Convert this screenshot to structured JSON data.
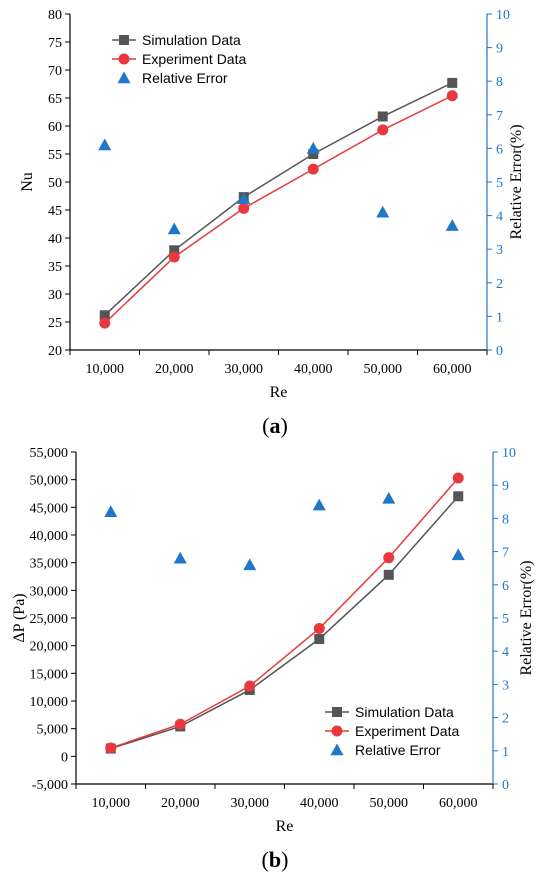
{
  "chart_data": [
    {
      "type": "line",
      "panel_label": "(a)",
      "panel_letter": "a",
      "xlabel": "Re",
      "ylabel": "Nu",
      "ylabel_right": "Relative Error(%)",
      "categories": [
        "10,000",
        "20,000",
        "30,000",
        "40,000",
        "50,000",
        "60,000"
      ],
      "ylim": [
        20,
        80
      ],
      "yticks": [
        "20",
        "25",
        "30",
        "35",
        "40",
        "45",
        "50",
        "55",
        "60",
        "65",
        "70",
        "75",
        "80"
      ],
      "ylim_right": [
        0,
        10
      ],
      "yticks_right": [
        "0",
        "1",
        "2",
        "3",
        "4",
        "5",
        "6",
        "7",
        "8",
        "9",
        "10"
      ],
      "legend_position": "top-left",
      "series": [
        {
          "name": "Simulation Data",
          "axis": "left",
          "marker": "square",
          "color": "#555555",
          "values": [
            26.2,
            37.8,
            47.3,
            55.0,
            61.7,
            67.7
          ]
        },
        {
          "name": "Experiment Data",
          "axis": "left",
          "marker": "circle",
          "color": "#e8383d",
          "values": [
            24.8,
            36.6,
            45.3,
            52.3,
            59.3,
            65.4
          ]
        },
        {
          "name": "Relative Error",
          "axis": "right",
          "marker": "triangle",
          "color": "#1f77c8",
          "values": [
            6.1,
            3.6,
            4.5,
            6.0,
            4.1,
            3.7
          ]
        }
      ]
    },
    {
      "type": "line",
      "panel_label": "(b)",
      "panel_letter": "b",
      "xlabel": "Re",
      "ylabel": "ΔP (Pa)",
      "ylabel_right": "Relative Error(%)",
      "categories": [
        "10,000",
        "20,000",
        "30,000",
        "40,000",
        "50,000",
        "60,000"
      ],
      "ylim": [
        -5000,
        55000
      ],
      "yticks": [
        "-5,000",
        "0",
        "5,000",
        "10,000",
        "15,000",
        "20,000",
        "25,000",
        "30,000",
        "35,000",
        "40,000",
        "45,000",
        "50,000",
        "55,000"
      ],
      "ylim_right": [
        0,
        10
      ],
      "yticks_right": [
        "0",
        "1",
        "2",
        "3",
        "4",
        "5",
        "6",
        "7",
        "8",
        "9",
        "10"
      ],
      "legend_position": "bottom-right",
      "series": [
        {
          "name": "Simulation Data",
          "axis": "left",
          "marker": "square",
          "color": "#555555",
          "values": [
            1400,
            5400,
            12000,
            21200,
            32800,
            47000
          ]
        },
        {
          "name": "Experiment Data",
          "axis": "left",
          "marker": "circle",
          "color": "#e8383d",
          "values": [
            1500,
            5800,
            12700,
            23100,
            35900,
            50300
          ]
        },
        {
          "name": "Relative Error",
          "axis": "right",
          "marker": "triangle",
          "color": "#1f77c8",
          "values": [
            8.2,
            6.8,
            6.6,
            8.4,
            8.6,
            6.9
          ]
        }
      ]
    }
  ]
}
